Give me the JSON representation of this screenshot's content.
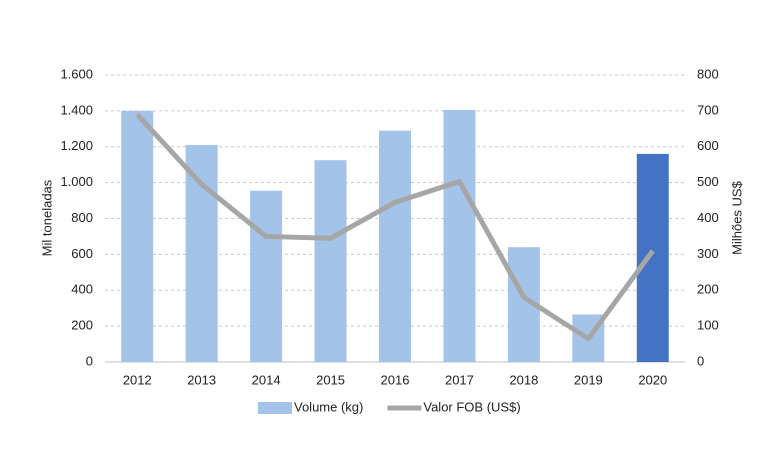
{
  "chart_data": {
    "type": "bar",
    "categories": [
      "2012",
      "2013",
      "2014",
      "2015",
      "2016",
      "2017",
      "2018",
      "2019",
      "2020"
    ],
    "y_label": "Mil toneladas",
    "y2_label": "Milhões US$",
    "ylim": [
      0,
      1600
    ],
    "yticks": [
      0,
      200,
      400,
      600,
      800,
      {
        "value": 1000,
        "label": "1.000"
      },
      {
        "value": 1200,
        "label": "1.200"
      },
      {
        "value": 1400,
        "label": "1.400"
      },
      {
        "value": 1600,
        "label": "1.600"
      }
    ],
    "y2lim": [
      0,
      800
    ],
    "y2ticks": [
      0,
      100,
      200,
      300,
      400,
      500,
      600,
      700,
      800
    ],
    "grid": true,
    "legend": "bottom",
    "series": [
      {
        "name": "Volume (kg)",
        "type": "bar",
        "color": "#a4c3e8",
        "colors": [
          "#a4c3e8",
          "#a4c3e8",
          "#a4c3e8",
          "#a4c3e8",
          "#a4c3e8",
          "#a4c3e8",
          "#a4c3e8",
          "#a4c3e8",
          "#4472c4"
        ],
        "values": [
          1400,
          1210,
          955,
          1125,
          1290,
          1405,
          640,
          265,
          1160
        ]
      },
      {
        "name": "Valor FOB (US$)",
        "type": "line",
        "axis": "y2",
        "color": "#a6a6a6",
        "values": [
          690,
          495,
          350,
          345,
          445,
          503,
          180,
          65,
          310
        ]
      }
    ]
  }
}
